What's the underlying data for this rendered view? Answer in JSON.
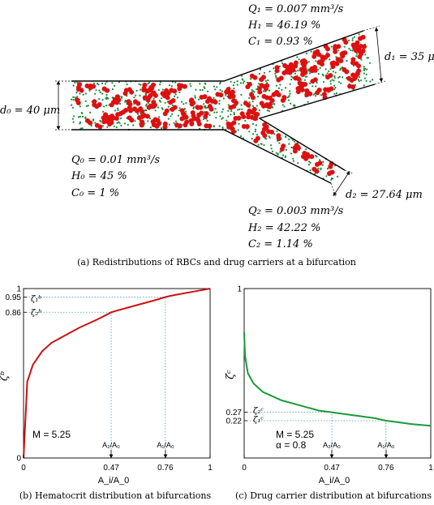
{
  "top": {
    "d0": "d₀ = 40 μm",
    "d1": "d₁ = 35 μm",
    "d2": "d₂ = 27.64 μm",
    "q0": "Q₀ = 0.01 mm³/s",
    "h0": "H₀ = 45 %",
    "c0": "C₀ =  1 %",
    "q1": "Q₁ = 0.007 mm³/s",
    "h1": "H₁ = 46.19 %",
    "c1": "C₁ =  0.93 %",
    "q2": "Q₂ = 0.003 mm³/s",
    "h2": "H₂ = 42.22 %",
    "c2": "C₂ =  1.14 %",
    "caption": "(a) Redistributions of RBCs and drug carriers at a bifurcation",
    "colors": {
      "rbc": "#dd1111",
      "carrier": "#1a8a3a"
    }
  },
  "charts": {
    "b": {
      "ylabel": "ζᵇ",
      "xlabel": "A_i/A_0",
      "annot_m": "M = 5.25",
      "marker1": "A₂/A₀",
      "marker2": "A₁/A₀",
      "zeta1": "ζ₁ᵇ",
      "zeta2": "ζ₂ᵇ",
      "caption": "(b) Hematocrit distribution at bifurcations",
      "color": "#cc1111"
    },
    "c": {
      "ylabel": "ζᶜ",
      "xlabel": "A_i/A_0",
      "annot_m": "M = 5.25",
      "annot_alpha": "α = 0.8",
      "marker1": "A₂/A₀",
      "marker2": "A₁/A₀",
      "zeta1": "ζ₁ᶜ",
      "zeta2": "ζ₂ᶜ",
      "caption": "(c) Drug carrier distribution at bifurcations",
      "color": "#1a9a3a"
    }
  },
  "chart_data": [
    {
      "type": "line",
      "x": [
        0,
        0.02,
        0.05,
        0.1,
        0.15,
        0.2,
        0.3,
        0.4,
        0.47,
        0.5,
        0.6,
        0.7,
        0.76,
        0.8,
        0.9,
        1.0
      ],
      "y": [
        0,
        0.45,
        0.55,
        0.63,
        0.68,
        0.71,
        0.77,
        0.82,
        0.86,
        0.87,
        0.9,
        0.93,
        0.95,
        0.96,
        0.98,
        1.0
      ],
      "xlim": [
        0,
        1
      ],
      "ylim": [
        0,
        1
      ],
      "xticks": [
        "0",
        "0.47",
        "0.76",
        "1"
      ],
      "yticks": [
        "0",
        "0.86",
        "0.95",
        "1"
      ]
    },
    {
      "type": "line",
      "x": [
        0,
        0.005,
        0.02,
        0.05,
        0.1,
        0.2,
        0.3,
        0.4,
        0.47,
        0.5,
        0.6,
        0.7,
        0.76,
        0.8,
        0.9,
        1.0
      ],
      "y": [
        0.74,
        0.6,
        0.5,
        0.44,
        0.39,
        0.34,
        0.31,
        0.28,
        0.27,
        0.265,
        0.25,
        0.235,
        0.22,
        0.215,
        0.2,
        0.19
      ],
      "xlim": [
        0,
        1
      ],
      "ylim": [
        0,
        1
      ],
      "xticks": [
        "0",
        "0.47",
        "0.76",
        "1"
      ],
      "yticks": [
        "0.22",
        "0.27",
        "1"
      ]
    }
  ]
}
